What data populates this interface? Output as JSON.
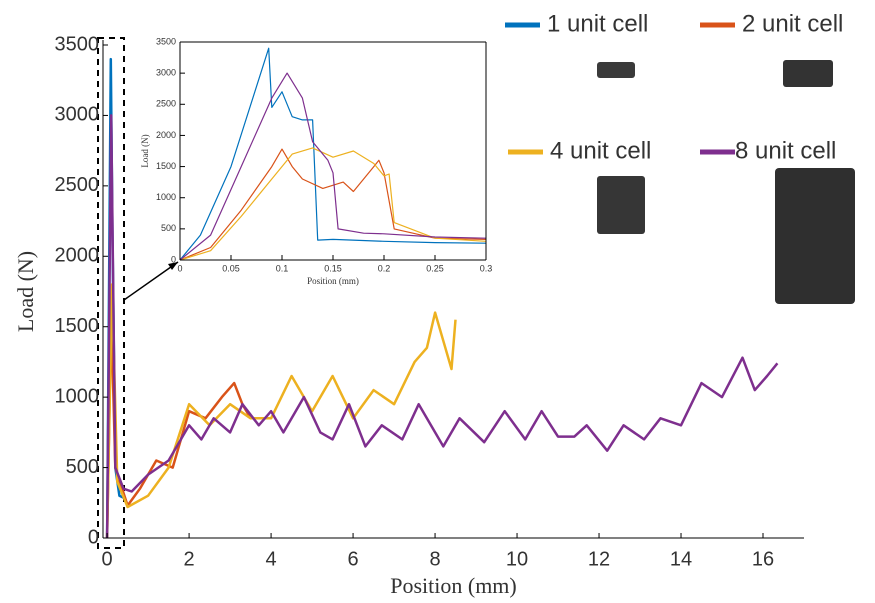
{
  "chart_data": [
    {
      "type": "line",
      "xlabel": "Position (mm)",
      "ylabel": "Load (N)",
      "xlim": [
        -0.1,
        17
      ],
      "ylim": [
        0,
        3500
      ],
      "xticks": [
        0,
        2,
        4,
        6,
        8,
        10,
        12,
        14,
        16
      ],
      "yticks": [
        0,
        500,
        1000,
        1500,
        2000,
        2500,
        3000,
        3500
      ],
      "series": [
        {
          "name": "1 unit cell",
          "color": "#0072BD",
          "x": [
            0,
            0.09,
            0.13,
            0.2,
            0.3,
            0.45
          ],
          "values": [
            0,
            3400,
            2200,
            500,
            300,
            280
          ]
        },
        {
          "name": "2 unit cell",
          "color": "#D95319",
          "x": [
            0,
            0.1,
            0.2,
            0.5,
            0.8,
            1.2,
            1.6,
            2,
            2.4,
            2.8,
            3.1,
            3.3,
            3.5
          ],
          "values": [
            0,
            1600,
            500,
            230,
            350,
            550,
            500,
            900,
            850,
            1000,
            1100,
            950,
            850
          ]
        },
        {
          "name": "4 unit cell",
          "color": "#EDB120",
          "x": [
            0,
            0.12,
            0.25,
            0.5,
            1,
            1.5,
            2,
            2.5,
            3,
            3.5,
            4,
            4.5,
            5,
            5.5,
            6,
            6.5,
            7,
            7.5,
            7.8,
            8,
            8.2,
            8.4,
            8.5
          ],
          "values": [
            0,
            1800,
            400,
            220,
            300,
            500,
            950,
            800,
            950,
            850,
            850,
            1150,
            900,
            1150,
            850,
            1050,
            950,
            1250,
            1350,
            1600,
            1400,
            1200,
            1550
          ]
        },
        {
          "name": "8 unit cell",
          "color": "#7E2F8E",
          "x": [
            0,
            0.1,
            0.2,
            0.4,
            0.6,
            1,
            1.5,
            2,
            2.3,
            2.6,
            3,
            3.3,
            3.7,
            4,
            4.3,
            4.8,
            5.2,
            5.5,
            5.9,
            6.3,
            6.7,
            7.2,
            7.6,
            8.2,
            8.6,
            9.2,
            9.7,
            10.2,
            10.6,
            11,
            11.4,
            11.7,
            12.2,
            12.6,
            13.1,
            13.5,
            14,
            14.5,
            15,
            15.5,
            15.8,
            16.1,
            16.35
          ],
          "values": [
            0,
            3000,
            500,
            350,
            330,
            450,
            550,
            800,
            700,
            850,
            750,
            950,
            800,
            900,
            750,
            1000,
            750,
            700,
            950,
            650,
            800,
            700,
            950,
            650,
            850,
            680,
            900,
            700,
            900,
            720,
            720,
            800,
            620,
            800,
            700,
            850,
            800,
            1100,
            1000,
            1280,
            1050,
            1150,
            1240
          ]
        }
      ]
    },
    {
      "type": "line",
      "xlabel": "Position (mm)",
      "ylabel": "Load (N)",
      "xlim": [
        0,
        0.3
      ],
      "ylim": [
        0,
        3500
      ],
      "xticks": [
        0,
        0.05,
        0.1,
        0.15,
        0.2,
        0.25,
        0.3
      ],
      "yticks": [
        0,
        500,
        1000,
        1500,
        2000,
        2500,
        3000,
        3500
      ],
      "series": [
        {
          "color": "#0072BD",
          "x": [
            0,
            0.02,
            0.05,
            0.087,
            0.09,
            0.1,
            0.11,
            0.12,
            0.13,
            0.135,
            0.15,
            0.2,
            0.25,
            0.3
          ],
          "values": [
            0,
            400,
            1500,
            3400,
            2450,
            2700,
            2300,
            2250,
            2250,
            320,
            330,
            300,
            280,
            270
          ]
        },
        {
          "color": "#D95319",
          "x": [
            0,
            0.03,
            0.06,
            0.09,
            0.1,
            0.11,
            0.12,
            0.14,
            0.16,
            0.17,
            0.19,
            0.195,
            0.2,
            0.21,
            0.25,
            0.3
          ],
          "values": [
            0,
            200,
            800,
            1500,
            1780,
            1500,
            1300,
            1150,
            1250,
            1100,
            1500,
            1600,
            1400,
            500,
            350,
            330
          ]
        },
        {
          "color": "#EDB120",
          "x": [
            0,
            0.03,
            0.06,
            0.09,
            0.11,
            0.13,
            0.15,
            0.17,
            0.19,
            0.2,
            0.205,
            0.21,
            0.25,
            0.3
          ],
          "values": [
            0,
            150,
            700,
            1300,
            1700,
            1800,
            1650,
            1750,
            1550,
            1350,
            1380,
            600,
            350,
            300
          ]
        },
        {
          "color": "#7E2F8E",
          "x": [
            0,
            0.03,
            0.06,
            0.09,
            0.105,
            0.12,
            0.13,
            0.145,
            0.15,
            0.155,
            0.18,
            0.2,
            0.25,
            0.3
          ],
          "values": [
            0,
            400,
            1500,
            2600,
            3000,
            2600,
            1900,
            1600,
            1400,
            500,
            430,
            420,
            370,
            350
          ]
        }
      ]
    }
  ]
}
